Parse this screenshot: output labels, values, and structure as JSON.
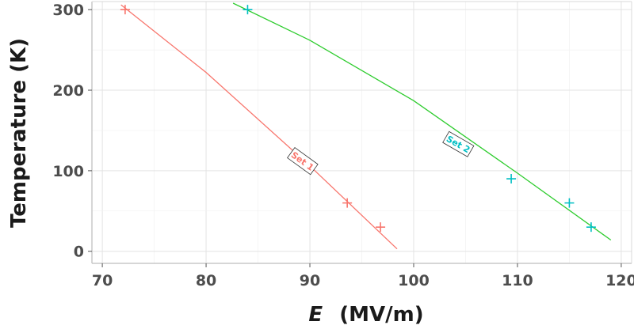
{
  "chart_data": {
    "type": "scatter",
    "title": "",
    "xlabel": {
      "symbol": "E",
      "unit": "(MV/m)"
    },
    "ylabel": "Temperature (K)",
    "xlim": [
      69,
      121
    ],
    "ylim": [
      -15,
      310
    ],
    "xticks": [
      70,
      80,
      90,
      100,
      110,
      120
    ],
    "yticks": [
      0,
      100,
      200,
      300
    ],
    "grid": true,
    "series": [
      {
        "name": "Set 1",
        "color": "#f8766d",
        "marker": "plus",
        "points": [
          {
            "x": 72.2,
            "y": 300
          },
          {
            "x": 93.6,
            "y": 60
          },
          {
            "x": 96.8,
            "y": 30
          }
        ],
        "fit_color": "#f8766d",
        "fit": [
          {
            "x": 71.8,
            "y": 306
          },
          {
            "x": 80.0,
            "y": 222
          },
          {
            "x": 90.0,
            "y": 106
          },
          {
            "x": 98.4,
            "y": 3
          }
        ],
        "label_at": {
          "x": 89.3,
          "y": 112
        },
        "label_angle": 36
      },
      {
        "name": "Set 2",
        "color": "#00bfc4",
        "marker": "plus",
        "points": [
          {
            "x": 84.0,
            "y": 300
          },
          {
            "x": 109.4,
            "y": 90
          },
          {
            "x": 115.0,
            "y": 60
          },
          {
            "x": 117.1,
            "y": 30
          }
        ],
        "fit_color": "#2ecc2e",
        "fit": [
          {
            "x": 82.6,
            "y": 308
          },
          {
            "x": 90.0,
            "y": 262
          },
          {
            "x": 100.0,
            "y": 187
          },
          {
            "x": 110.0,
            "y": 97
          },
          {
            "x": 119.0,
            "y": 14
          }
        ],
        "label_at": {
          "x": 104.3,
          "y": 133
        },
        "label_angle": 30
      }
    ]
  }
}
